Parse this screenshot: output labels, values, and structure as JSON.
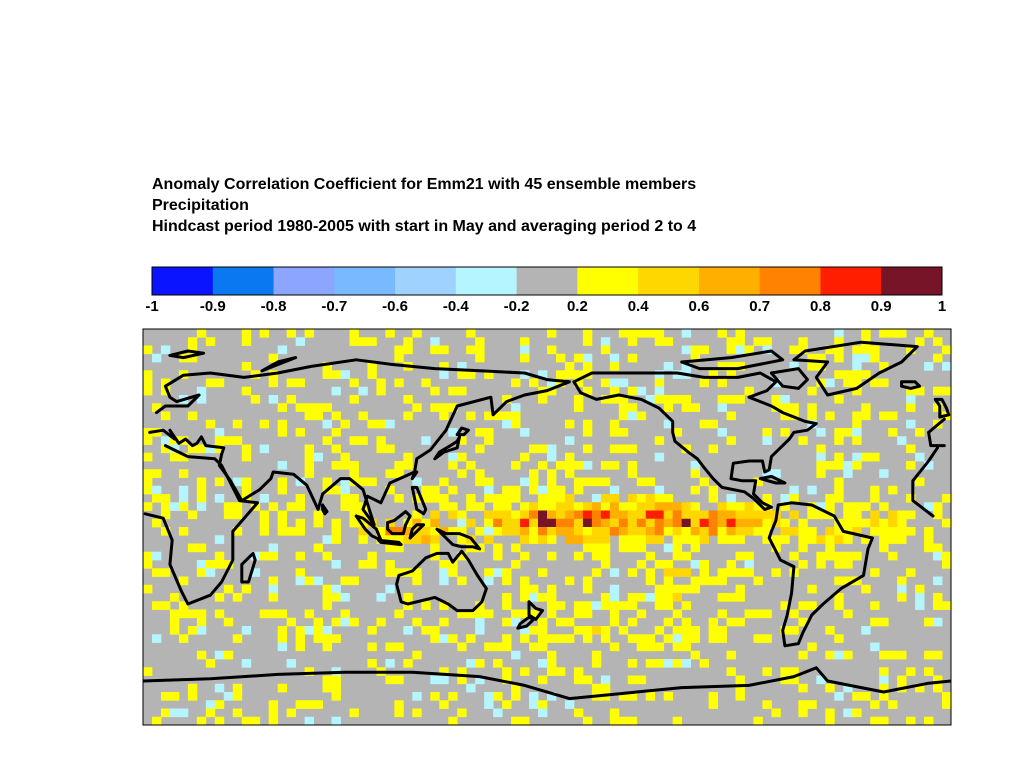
{
  "title": {
    "line1": "Anomaly Correlation Coefficient for Emm21 with 45 ensemble members",
    "line2": "Precipitation",
    "line3": "Hindcast period 1980-2005 with start in May and averaging period 2 to 4"
  },
  "colorbar": {
    "ticks": [
      "-1",
      "-0.9",
      "-0.8",
      "-0.7",
      "-0.6",
      "-0.4",
      "-0.2",
      "0.2",
      "0.4",
      "0.6",
      "0.7",
      "0.8",
      "0.9",
      "1"
    ],
    "colors": [
      "#0a14ff",
      "#0a78f0",
      "#8ca5ff",
      "#78b9ff",
      "#a0d2ff",
      "#b4f5ff",
      "#b4b4b4",
      "#ffff00",
      "#ffd700",
      "#ffaf00",
      "#ff8200",
      "#ff1e00",
      "#781428"
    ]
  },
  "map": {
    "projection": "equirectangular",
    "lon_range": [
      0,
      360
    ],
    "lat_range": [
      -90,
      90
    ],
    "background_color": "#b4b4b4",
    "coastline_color": "#000000"
  }
}
